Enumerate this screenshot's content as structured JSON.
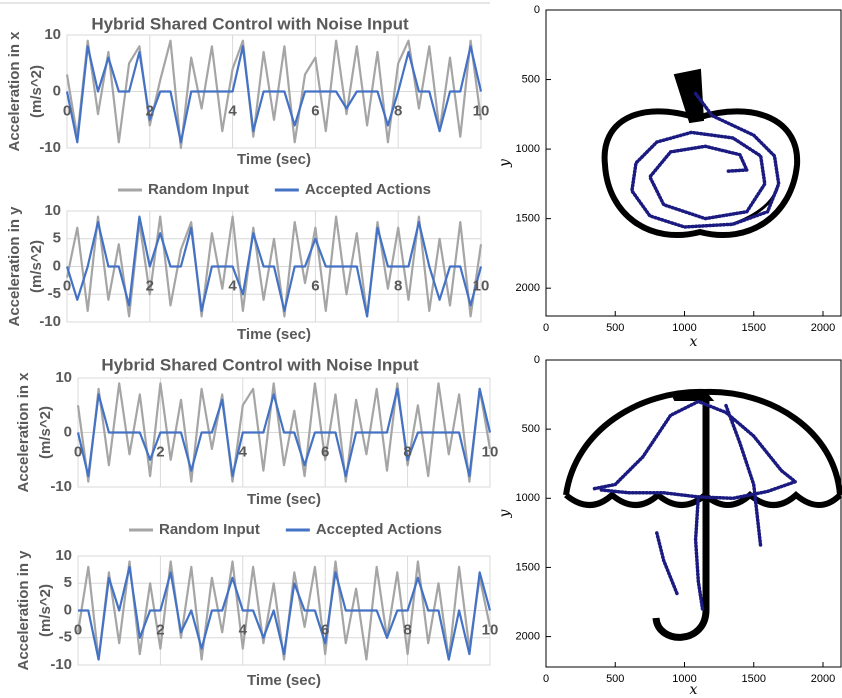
{
  "chart_data": [
    {
      "type": "line",
      "title": "Hybrid Shared Control with Noise Input",
      "xlabel": "Time (sec)",
      "ylabel": [
        "Acceleration in  x",
        "(m/s^2)"
      ],
      "x": [
        0,
        0.25,
        0.5,
        0.75,
        1,
        1.25,
        1.5,
        1.75,
        2,
        2.25,
        2.5,
        2.75,
        3,
        3.25,
        3.5,
        3.75,
        4,
        4.25,
        4.5,
        4.75,
        5,
        5.25,
        5.5,
        5.75,
        6,
        6.25,
        6.5,
        6.75,
        7,
        7.25,
        7.5,
        7.75,
        8,
        8.25,
        8.5,
        8.75,
        9,
        9.25,
        9.5,
        9.75,
        10
      ],
      "xlim": [
        0,
        10
      ],
      "xticks": [
        0,
        2,
        4,
        6,
        8,
        10
      ],
      "ylim": [
        -10,
        10
      ],
      "yticks": [
        -10,
        0,
        10
      ],
      "grid": true,
      "legend": "bottom",
      "series": [
        {
          "name": "Random Input",
          "color": "#a5a5a5",
          "values": [
            3,
            -8,
            9,
            -4,
            7,
            -9,
            5,
            8,
            -6,
            2,
            9,
            -10,
            6,
            -3,
            8,
            -7,
            4,
            9,
            -8,
            7,
            -5,
            8,
            -9,
            3,
            6,
            -7,
            9,
            -4,
            8,
            -6,
            7,
            -9,
            5,
            9,
            -3,
            8,
            -7,
            6,
            -8,
            9,
            -5
          ]
        },
        {
          "name": "Accepted Actions",
          "color": "#4472c4",
          "values": [
            0,
            -9,
            8,
            0,
            6,
            0,
            0,
            7,
            -5,
            0,
            0,
            -9,
            0,
            0,
            0,
            0,
            0,
            8,
            -7,
            0,
            0,
            0,
            -6,
            0,
            0,
            0,
            0,
            -3,
            0,
            0,
            0,
            -6,
            0,
            7,
            0,
            0,
            -7,
            0,
            0,
            8,
            0
          ]
        }
      ]
    },
    {
      "type": "line",
      "xlabel": "Time (sec)",
      "ylabel": [
        "Acceleration in  y",
        "(m/s^2)"
      ],
      "x": [
        0,
        0.25,
        0.5,
        0.75,
        1,
        1.25,
        1.5,
        1.75,
        2,
        2.25,
        2.5,
        2.75,
        3,
        3.25,
        3.5,
        3.75,
        4,
        4.25,
        4.5,
        4.75,
        5,
        5.25,
        5.5,
        5.75,
        6,
        6.25,
        6.5,
        6.75,
        7,
        7.25,
        7.5,
        7.75,
        8,
        8.25,
        8.5,
        8.75,
        9,
        9.25,
        9.5,
        9.75,
        10
      ],
      "xlim": [
        0,
        10
      ],
      "xticks": [
        0,
        2,
        4,
        6,
        8,
        10
      ],
      "ylim": [
        -10,
        10
      ],
      "yticks": [
        -10,
        -5,
        0,
        5,
        10
      ],
      "grid": true,
      "series": [
        {
          "color": "#a5a5a5",
          "values": [
            -2,
            7,
            -8,
            9,
            -6,
            4,
            -9,
            8,
            -5,
            9,
            -7,
            3,
            8,
            -9,
            6,
            -4,
            9,
            -8,
            7,
            -6,
            5,
            -9,
            8,
            -3,
            7,
            -8,
            9,
            -5,
            6,
            -9,
            8,
            -4,
            7,
            -6,
            9,
            -8,
            5,
            -7,
            8,
            -9,
            4
          ]
        },
        {
          "color": "#4472c4",
          "values": [
            0,
            -6,
            0,
            8,
            0,
            0,
            -7,
            9,
            0,
            6,
            0,
            0,
            7,
            -8,
            0,
            0,
            0,
            -5,
            6,
            0,
            0,
            -8,
            0,
            0,
            5,
            0,
            0,
            0,
            0,
            -9,
            7,
            0,
            0,
            0,
            8,
            0,
            -6,
            0,
            0,
            -7,
            0
          ]
        }
      ]
    },
    {
      "type": "line",
      "title": "Hybrid Shared Control with Noise Input",
      "xlabel": "Time (sec)",
      "ylabel": [
        "Acceleration in  x",
        "(m/s^2)"
      ],
      "x": [
        0,
        0.25,
        0.5,
        0.75,
        1,
        1.25,
        1.5,
        1.75,
        2,
        2.25,
        2.5,
        2.75,
        3,
        3.25,
        3.5,
        3.75,
        4,
        4.25,
        4.5,
        4.75,
        5,
        5.25,
        5.5,
        5.75,
        6,
        6.25,
        6.5,
        6.75,
        7,
        7.25,
        7.5,
        7.75,
        8,
        8.25,
        8.5,
        8.75,
        9,
        9.25,
        9.5,
        9.75,
        10
      ],
      "xlim": [
        0,
        10
      ],
      "xticks": [
        0,
        2,
        4,
        6,
        8,
        10
      ],
      "ylim": [
        -10,
        10
      ],
      "yticks": [
        -10,
        0,
        10
      ],
      "grid": true,
      "legend": "bottom",
      "series": [
        {
          "name": "Random Input",
          "color": "#a5a5a5",
          "values": [
            5,
            -9,
            8,
            -6,
            9,
            -4,
            7,
            -8,
            9,
            -5,
            6,
            -9,
            8,
            -3,
            7,
            -9,
            5,
            8,
            -7,
            9,
            -6,
            4,
            -8,
            9,
            -5,
            7,
            -9,
            6,
            -4,
            8,
            -7,
            9,
            -6,
            5,
            -8,
            9,
            -4,
            7,
            -9,
            8,
            -3
          ]
        },
        {
          "name": "Accepted Actions",
          "color": "#4472c4",
          "values": [
            0,
            -8,
            7,
            0,
            0,
            0,
            0,
            -5,
            0,
            0,
            0,
            -7,
            0,
            0,
            6,
            -8,
            0,
            0,
            0,
            7,
            0,
            0,
            -6,
            0,
            0,
            0,
            -8,
            0,
            0,
            0,
            0,
            8,
            -5,
            0,
            0,
            0,
            0,
            0,
            -8,
            8,
            0
          ]
        }
      ]
    },
    {
      "type": "line",
      "xlabel": "Time (sec)",
      "ylabel": [
        "Acceleration in  y",
        "(m/s^2)"
      ],
      "x": [
        0,
        0.25,
        0.5,
        0.75,
        1,
        1.25,
        1.5,
        1.75,
        2,
        2.25,
        2.5,
        2.75,
        3,
        3.25,
        3.5,
        3.75,
        4,
        4.25,
        4.5,
        4.75,
        5,
        5.25,
        5.5,
        5.75,
        6,
        6.25,
        6.5,
        6.75,
        7,
        7.25,
        7.5,
        7.75,
        8,
        8.25,
        8.5,
        8.75,
        9,
        9.25,
        9.5,
        9.75,
        10
      ],
      "xlim": [
        0,
        10
      ],
      "xticks": [
        0,
        2,
        4,
        6,
        8,
        10
      ],
      "ylim": [
        -10,
        10
      ],
      "yticks": [
        -10,
        -5,
        0,
        5,
        10
      ],
      "grid": true,
      "series": [
        {
          "color": "#a5a5a5",
          "values": [
            -4,
            8,
            -9,
            7,
            -6,
            9,
            -8,
            5,
            -7,
            9,
            -5,
            8,
            -9,
            6,
            -4,
            9,
            -7,
            8,
            -6,
            5,
            -9,
            7,
            -3,
            8,
            -8,
            9,
            -6,
            4,
            -9,
            8,
            -5,
            7,
            -8,
            9,
            -6,
            5,
            -9,
            8,
            -7,
            6,
            -3
          ]
        },
        {
          "color": "#4472c4",
          "values": [
            0,
            0,
            -9,
            6,
            0,
            8,
            -5,
            0,
            0,
            7,
            -4,
            0,
            -7,
            0,
            0,
            6,
            0,
            0,
            -5,
            0,
            -8,
            5,
            0,
            0,
            -6,
            7,
            0,
            0,
            0,
            0,
            -5,
            0,
            0,
            6,
            0,
            0,
            -9,
            0,
            -8,
            7,
            0
          ]
        }
      ]
    },
    {
      "type": "trajectory",
      "xlabel": "x",
      "ylabel": "y",
      "xlim": [
        0,
        2130
      ],
      "xticks": [
        0,
        500,
        1000,
        1500,
        2000
      ],
      "ylim": [
        0,
        2200
      ],
      "yticks": [
        0,
        500,
        1000,
        1500,
        2000
      ],
      "y_inverted": true,
      "x": [
        1080,
        1200,
        1500,
        1650,
        1680,
        1600,
        1350,
        1000,
        750,
        620,
        650,
        800,
        1050,
        1350,
        1550,
        1580,
        1450,
        1150,
        850,
        750,
        900,
        1150,
        1400,
        1450,
        1300
      ],
      "series": [
        {
          "color": "#1a1a80",
          "values": [
            600,
            760,
            900,
            1050,
            1250,
            1450,
            1540,
            1560,
            1480,
            1300,
            1100,
            950,
            880,
            920,
            1050,
            1250,
            1450,
            1500,
            1400,
            1200,
            1020,
            980,
            1040,
            1150,
            1160
          ]
        }
      ]
    },
    {
      "type": "trajectory",
      "xlabel": "x",
      "ylabel": "y",
      "xlim": [
        0,
        2130
      ],
      "xticks": [
        0,
        500,
        1000,
        1500,
        2000
      ],
      "ylim": [
        0,
        2220
      ],
      "yticks": [
        0,
        500,
        1000,
        1500,
        2000
      ],
      "y_inverted": true,
      "x": [
        350,
        500,
        700,
        900,
        1100,
        1300,
        1500,
        1700,
        1800,
        1600,
        1350,
        1100,
        850,
        600,
        400,
        null,
        1100,
        1080,
        1100,
        1130,
        null,
        1300,
        1400,
        1500,
        1550,
        null,
        800,
        850,
        950
      ],
      "series": [
        {
          "color": "#1a1a80",
          "values": [
            930,
            900,
            700,
            400,
            300,
            380,
            550,
            800,
            880,
            950,
            1000,
            990,
            960,
            960,
            940,
            null,
            990,
            1300,
            1600,
            1800,
            null,
            330,
            600,
            900,
            1350,
            null,
            1250,
            1450,
            1700
          ]
        }
      ]
    }
  ]
}
